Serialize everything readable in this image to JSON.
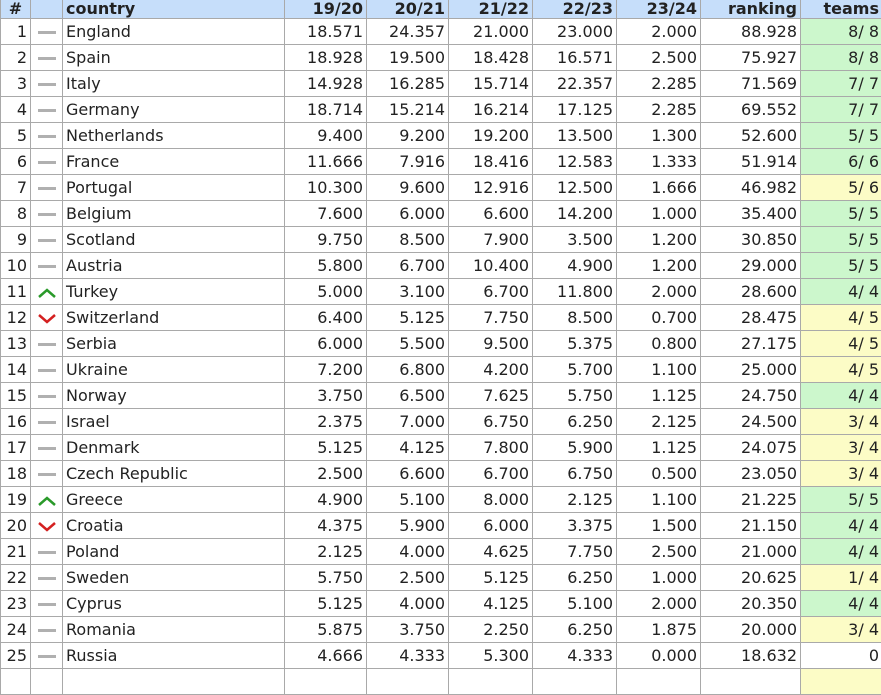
{
  "headers": [
    "#",
    "",
    "country",
    "19/20",
    "20/21",
    "21/22",
    "22/23",
    "23/24",
    "ranking",
    "teams"
  ],
  "colors": {
    "header": "#c6defa",
    "teams_full": "#ccf7cc",
    "teams_partial": "#fcfcc6",
    "trend_up": "#2a9a2a",
    "trend_down": "#d42020",
    "trend_same": "#b0b0b0"
  },
  "rows": [
    {
      "rank": "1",
      "trend": "same",
      "country": "England",
      "v": [
        "18.571",
        "24.357",
        "21.000",
        "23.000",
        "2.000"
      ],
      "ranking": "88.928",
      "teams": "8/ 8",
      "status": "full"
    },
    {
      "rank": "2",
      "trend": "same",
      "country": "Spain",
      "v": [
        "18.928",
        "19.500",
        "18.428",
        "16.571",
        "2.500"
      ],
      "ranking": "75.927",
      "teams": "8/ 8",
      "status": "full"
    },
    {
      "rank": "3",
      "trend": "same",
      "country": "Italy",
      "v": [
        "14.928",
        "16.285",
        "15.714",
        "22.357",
        "2.285"
      ],
      "ranking": "71.569",
      "teams": "7/ 7",
      "status": "full"
    },
    {
      "rank": "4",
      "trend": "same",
      "country": "Germany",
      "v": [
        "18.714",
        "15.214",
        "16.214",
        "17.125",
        "2.285"
      ],
      "ranking": "69.552",
      "teams": "7/ 7",
      "status": "full"
    },
    {
      "rank": "5",
      "trend": "same",
      "country": "Netherlands",
      "v": [
        "9.400",
        "9.200",
        "19.200",
        "13.500",
        "1.300"
      ],
      "ranking": "52.600",
      "teams": "5/ 5",
      "status": "full"
    },
    {
      "rank": "6",
      "trend": "same",
      "country": "France",
      "v": [
        "11.666",
        "7.916",
        "18.416",
        "12.583",
        "1.333"
      ],
      "ranking": "51.914",
      "teams": "6/ 6",
      "status": "full"
    },
    {
      "rank": "7",
      "trend": "same",
      "country": "Portugal",
      "v": [
        "10.300",
        "9.600",
        "12.916",
        "12.500",
        "1.666"
      ],
      "ranking": "46.982",
      "teams": "5/ 6",
      "status": "partial"
    },
    {
      "rank": "8",
      "trend": "same",
      "country": "Belgium",
      "v": [
        "7.600",
        "6.000",
        "6.600",
        "14.200",
        "1.000"
      ],
      "ranking": "35.400",
      "teams": "5/ 5",
      "status": "full"
    },
    {
      "rank": "9",
      "trend": "same",
      "country": "Scotland",
      "v": [
        "9.750",
        "8.500",
        "7.900",
        "3.500",
        "1.200"
      ],
      "ranking": "30.850",
      "teams": "5/ 5",
      "status": "full"
    },
    {
      "rank": "10",
      "trend": "same",
      "country": "Austria",
      "v": [
        "5.800",
        "6.700",
        "10.400",
        "4.900",
        "1.200"
      ],
      "ranking": "29.000",
      "teams": "5/ 5",
      "status": "full"
    },
    {
      "rank": "11",
      "trend": "up",
      "country": "Turkey",
      "v": [
        "5.000",
        "3.100",
        "6.700",
        "11.800",
        "2.000"
      ],
      "ranking": "28.600",
      "teams": "4/ 4",
      "status": "full"
    },
    {
      "rank": "12",
      "trend": "down",
      "country": "Switzerland",
      "v": [
        "6.400",
        "5.125",
        "7.750",
        "8.500",
        "0.700"
      ],
      "ranking": "28.475",
      "teams": "4/ 5",
      "status": "partial"
    },
    {
      "rank": "13",
      "trend": "same",
      "country": "Serbia",
      "v": [
        "6.000",
        "5.500",
        "9.500",
        "5.375",
        "0.800"
      ],
      "ranking": "27.175",
      "teams": "4/ 5",
      "status": "partial"
    },
    {
      "rank": "14",
      "trend": "same",
      "country": "Ukraine",
      "v": [
        "7.200",
        "6.800",
        "4.200",
        "5.700",
        "1.100"
      ],
      "ranking": "25.000",
      "teams": "4/ 5",
      "status": "partial"
    },
    {
      "rank": "15",
      "trend": "same",
      "country": "Norway",
      "v": [
        "3.750",
        "6.500",
        "7.625",
        "5.750",
        "1.125"
      ],
      "ranking": "24.750",
      "teams": "4/ 4",
      "status": "full"
    },
    {
      "rank": "16",
      "trend": "same",
      "country": "Israel",
      "v": [
        "2.375",
        "7.000",
        "6.750",
        "6.250",
        "2.125"
      ],
      "ranking": "24.500",
      "teams": "3/ 4",
      "status": "partial"
    },
    {
      "rank": "17",
      "trend": "same",
      "country": "Denmark",
      "v": [
        "5.125",
        "4.125",
        "7.800",
        "5.900",
        "1.125"
      ],
      "ranking": "24.075",
      "teams": "3/ 4",
      "status": "partial"
    },
    {
      "rank": "18",
      "trend": "same",
      "country": "Czech Republic",
      "v": [
        "2.500",
        "6.600",
        "6.700",
        "6.750",
        "0.500"
      ],
      "ranking": "23.050",
      "teams": "3/ 4",
      "status": "partial"
    },
    {
      "rank": "19",
      "trend": "up",
      "country": "Greece",
      "v": [
        "4.900",
        "5.100",
        "8.000",
        "2.125",
        "1.100"
      ],
      "ranking": "21.225",
      "teams": "5/ 5",
      "status": "full"
    },
    {
      "rank": "20",
      "trend": "down",
      "country": "Croatia",
      "v": [
        "4.375",
        "5.900",
        "6.000",
        "3.375",
        "1.500"
      ],
      "ranking": "21.150",
      "teams": "4/ 4",
      "status": "full"
    },
    {
      "rank": "21",
      "trend": "same",
      "country": "Poland",
      "v": [
        "2.125",
        "4.000",
        "4.625",
        "7.750",
        "2.500"
      ],
      "ranking": "21.000",
      "teams": "4/ 4",
      "status": "full"
    },
    {
      "rank": "22",
      "trend": "same",
      "country": "Sweden",
      "v": [
        "5.750",
        "2.500",
        "5.125",
        "6.250",
        "1.000"
      ],
      "ranking": "20.625",
      "teams": "1/ 4",
      "status": "partial"
    },
    {
      "rank": "23",
      "trend": "same",
      "country": "Cyprus",
      "v": [
        "5.125",
        "4.000",
        "4.125",
        "5.100",
        "2.000"
      ],
      "ranking": "20.350",
      "teams": "4/ 4",
      "status": "full"
    },
    {
      "rank": "24",
      "trend": "same",
      "country": "Romania",
      "v": [
        "5.875",
        "3.750",
        "2.250",
        "6.250",
        "1.875"
      ],
      "ranking": "20.000",
      "teams": "3/ 4",
      "status": "partial"
    },
    {
      "rank": "25",
      "trend": "same",
      "country": "Russia",
      "v": [
        "4.666",
        "4.333",
        "5.300",
        "4.333",
        "0.000"
      ],
      "ranking": "18.632",
      "teams": "0",
      "status": "none"
    }
  ]
}
